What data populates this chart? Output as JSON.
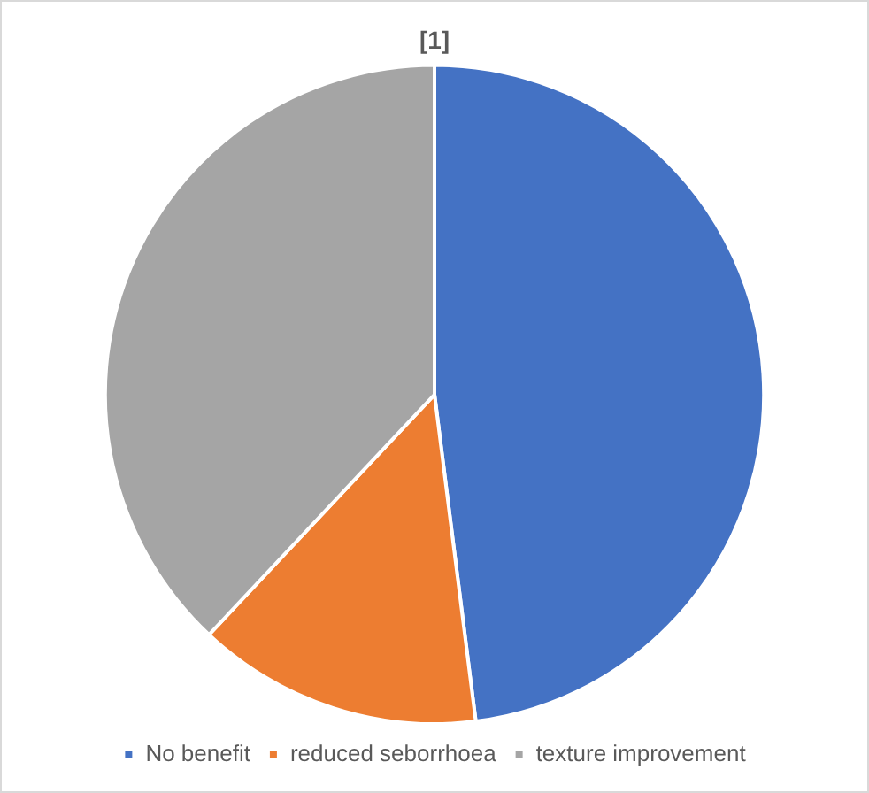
{
  "chart_data": {
    "type": "pie",
    "title": "[1]",
    "categories": [
      "No benefit",
      "reduced seborrhoea",
      "texture improvement"
    ],
    "values": [
      48,
      14,
      38
    ],
    "colors": [
      "#4472c4",
      "#ed7d31",
      "#a5a5a5"
    ],
    "legend": "bottom"
  }
}
